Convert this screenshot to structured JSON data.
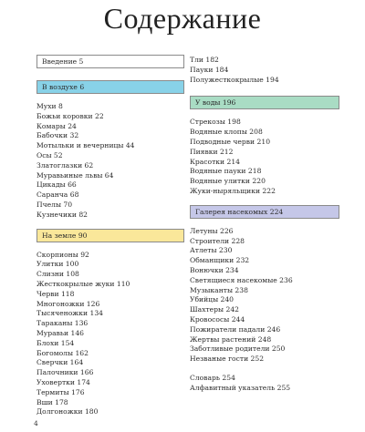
{
  "title": "Содержание",
  "page_number": "4",
  "colors": {
    "white": "#ffffff",
    "blue": "#88d2e8",
    "yellow": "#fae79a",
    "green": "#a9dcc4",
    "lavender": "#c5c7e8"
  },
  "left": {
    "intro": "Введение 5",
    "sections": [
      {
        "heading": "В воздухе 6",
        "color": "blue",
        "items": [
          "Мухи 8",
          "Божьи коровки 22",
          "Комары 24",
          "Бабочки 32",
          "Мотыльки и вечерницы 44",
          "Осы 52",
          "Златоглазки 62",
          "Муравьиные львы 64",
          "Цикады 66",
          "Саранча 68",
          "Пчелы 70",
          "Кузнечики 82"
        ]
      },
      {
        "heading": "На земле 90",
        "color": "yellow",
        "items": [
          "Скорпионы 92",
          "Улитки 100",
          "Слизни 108",
          "Жесткокрылые жуки 110",
          "Черви 118",
          "Многоножки 126",
          "Тысяченожки 134",
          "Тараканы 136",
          "Муравьи 146",
          "Блохи 154",
          "Богомолы 162",
          "Сверчки 164",
          "Палочники 166",
          "Уховертки 174",
          "Термиты 176",
          "Вши 178",
          "Долгоножки 180"
        ]
      }
    ]
  },
  "right": {
    "top_items": [
      "Тли 182",
      "Пауки 184",
      "Полужесткокрылые 194"
    ],
    "sections": [
      {
        "heading": "У воды 196",
        "color": "green",
        "items": [
          "Стрекозы 198",
          "Водяные клопы 208",
          "Подводные черви 210",
          "Пиявки 212",
          "Красотки 214",
          "Водяные пауки 218",
          "Водяные улитки 220",
          "Жуки-ныряльщики 222"
        ]
      },
      {
        "heading": "Галерея насекомых 224",
        "color": "lavender",
        "items": [
          "Летуны 226",
          "Строители 228",
          "Атлеты 230",
          "Обманщики 232",
          "Вонючки 234",
          "Светящиеся насекомые 236",
          "Музыканты 238",
          "Убийцы 240",
          "Шахтеры 242",
          "Кровососы 244",
          "Пожиратели падали 246",
          "Жертвы растений 248",
          "Заботливые родители 250",
          "Незваные гости 252"
        ]
      }
    ],
    "appendix": [
      "Словарь 254",
      "Алфавитный указатель 255"
    ]
  }
}
